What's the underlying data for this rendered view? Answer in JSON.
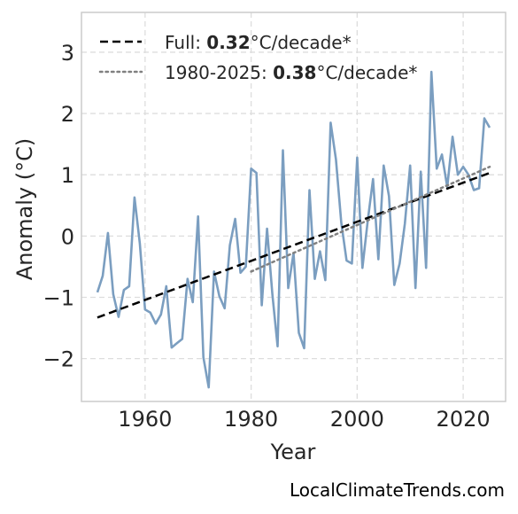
{
  "chart_data": {
    "type": "line",
    "xlabel": "Year",
    "ylabel": "Anomaly (°C)",
    "xlim": [
      1948,
      2028
    ],
    "ylim": [
      -2.7,
      3.65
    ],
    "xticks": [
      1960,
      1980,
      2000,
      2020
    ],
    "yticks": [
      -2,
      -1,
      0,
      1,
      2,
      3
    ],
    "ytick_labels": [
      "−2",
      "−1",
      "0",
      "1",
      "2",
      "3"
    ],
    "grid": true,
    "legend_position": "top-left",
    "series": [
      {
        "color": "#7b9ec0",
        "x": [
          1951,
          1952,
          1953,
          1954,
          1955,
          1956,
          1957,
          1958,
          1959,
          1960,
          1961,
          1962,
          1963,
          1964,
          1965,
          1966,
          1967,
          1968,
          1969,
          1970,
          1971,
          1972,
          1973,
          1974,
          1975,
          1976,
          1977,
          1978,
          1979,
          1980,
          1981,
          1982,
          1983,
          1984,
          1985,
          1986,
          1987,
          1988,
          1989,
          1990,
          1991,
          1992,
          1993,
          1994,
          1995,
          1996,
          1997,
          1998,
          1999,
          2000,
          2001,
          2002,
          2003,
          2004,
          2005,
          2006,
          2007,
          2008,
          2009,
          2010,
          2011,
          2012,
          2013,
          2014,
          2015,
          2016,
          2017,
          2018,
          2019,
          2020,
          2021,
          2022,
          2023,
          2024,
          2025
        ],
        "y": [
          -0.92,
          -0.65,
          0.05,
          -0.95,
          -1.32,
          -0.88,
          -0.82,
          0.63,
          -0.12,
          -1.2,
          -1.25,
          -1.43,
          -1.28,
          -0.82,
          -1.82,
          -1.75,
          -1.68,
          -0.7,
          -1.08,
          0.32,
          -1.98,
          -2.47,
          -0.58,
          -0.98,
          -1.18,
          -0.15,
          0.28,
          -0.6,
          -0.5,
          1.1,
          1.03,
          -1.13,
          0.12,
          -0.95,
          -1.8,
          1.4,
          -0.85,
          -0.28,
          -1.58,
          -1.83,
          0.75,
          -0.7,
          -0.25,
          -0.72,
          1.85,
          1.25,
          0.22,
          -0.4,
          -0.45,
          1.28,
          -0.52,
          0.25,
          0.93,
          -0.38,
          1.15,
          0.65,
          -0.8,
          -0.45,
          0.2,
          1.15,
          -0.85,
          1.05,
          -0.52,
          2.68,
          1.1,
          1.33,
          0.8,
          1.62,
          1.0,
          1.13,
          1.0,
          0.75,
          0.78,
          1.92,
          1.77
        ]
      }
    ],
    "trends": [
      {
        "style": "dashed",
        "color": "#000000",
        "x": [
          1951,
          2025
        ],
        "y": [
          -1.33,
          1.03
        ],
        "legend_prefix": "Full: ",
        "legend_value": "0.32",
        "legend_suffix": "°C/decade*"
      },
      {
        "style": "dotted",
        "color": "#808080",
        "x": [
          1980,
          2025
        ],
        "y": [
          -0.58,
          1.13
        ],
        "legend_prefix": "1980-2025: ",
        "legend_value": "0.38",
        "legend_suffix": "°C/decade*"
      }
    ]
  },
  "credit": "LocalClimateTrends.com"
}
